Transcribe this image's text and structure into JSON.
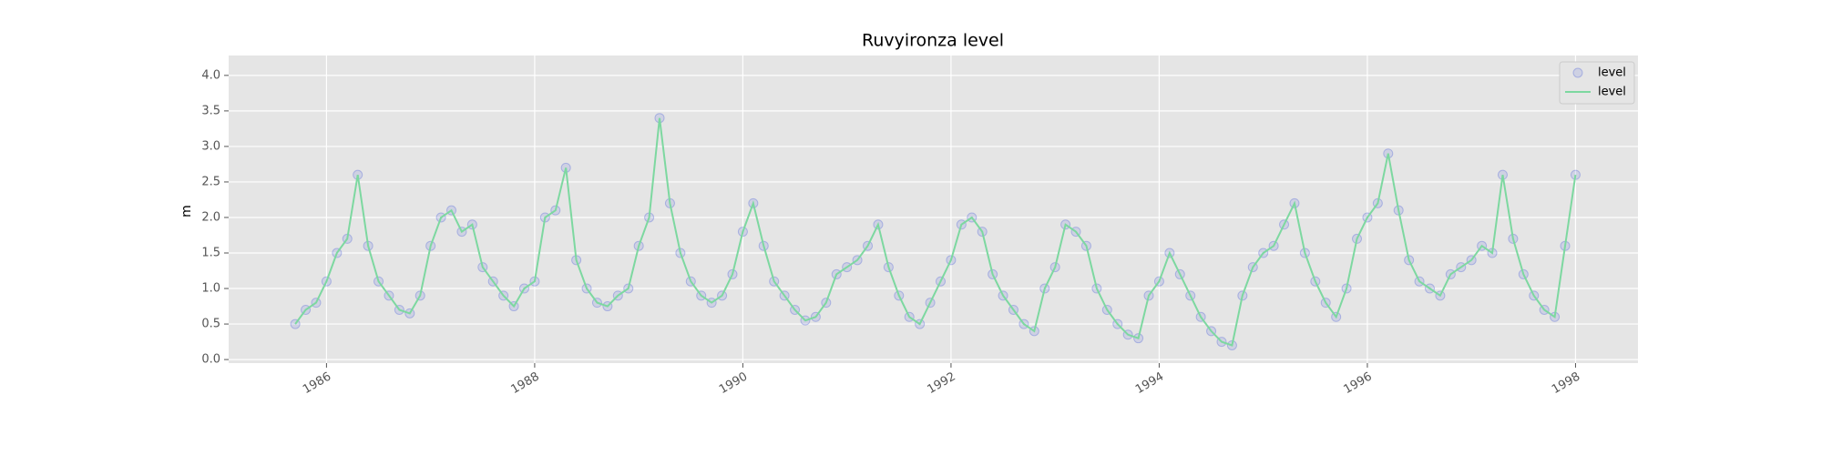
{
  "chart_data": {
    "type": "line",
    "title": "Ruvyironza level",
    "y_label": "m",
    "x": [
      1985.7,
      1985.8,
      1985.9,
      1986.0,
      1986.1,
      1986.2,
      1986.3,
      1986.4,
      1986.5,
      1986.6,
      1986.7,
      1986.8,
      1986.9,
      1987.0,
      1987.1,
      1987.2,
      1987.3,
      1987.4,
      1987.5,
      1987.6,
      1987.7,
      1987.8,
      1987.9,
      1988.0,
      1988.1,
      1988.2,
      1988.3,
      1988.4,
      1988.5,
      1988.6,
      1988.7,
      1988.8,
      1988.9,
      1989.0,
      1989.1,
      1989.2,
      1989.3,
      1989.4,
      1989.5,
      1989.6,
      1989.7,
      1989.8,
      1989.9,
      1990.0,
      1990.1,
      1990.2,
      1990.3,
      1990.4,
      1990.5,
      1990.6,
      1990.7,
      1990.8,
      1990.9,
      1991.0,
      1991.1,
      1991.2,
      1991.3,
      1991.4,
      1991.5,
      1991.6,
      1991.7,
      1991.8,
      1991.9,
      1992.0,
      1992.1,
      1992.2,
      1992.3,
      1992.4,
      1992.5,
      1992.6,
      1992.7,
      1992.8,
      1992.9,
      1993.0,
      1993.1,
      1993.2,
      1993.3,
      1993.4,
      1993.5,
      1993.6,
      1993.7,
      1993.8,
      1993.9,
      1994.0,
      1994.1,
      1994.2,
      1994.3,
      1994.4,
      1994.5,
      1994.6,
      1994.7,
      1994.8,
      1994.9,
      1995.0,
      1995.1,
      1995.2,
      1995.3,
      1995.4,
      1995.5,
      1995.6,
      1995.7,
      1995.8,
      1995.9,
      1996.0,
      1996.1,
      1996.2,
      1996.3,
      1996.4,
      1996.5,
      1996.6,
      1996.7,
      1996.8,
      1996.9,
      1997.0,
      1997.1,
      1997.2,
      1997.3,
      1997.4,
      1997.5,
      1997.6,
      1997.7,
      1997.8,
      1997.9,
      1998.0
    ],
    "series": [
      {
        "name": "level",
        "style": "markers",
        "color": "#4a5fd9",
        "values": [
          0.5,
          0.7,
          0.8,
          1.1,
          1.5,
          1.7,
          2.6,
          1.6,
          1.1,
          0.9,
          0.7,
          0.65,
          0.9,
          1.6,
          2.0,
          2.1,
          1.8,
          1.9,
          1.3,
          1.1,
          0.9,
          0.75,
          1.0,
          1.1,
          2.0,
          2.1,
          2.7,
          1.4,
          1.0,
          0.8,
          0.75,
          0.9,
          1.0,
          1.6,
          2.0,
          3.4,
          2.2,
          1.5,
          1.1,
          0.9,
          0.8,
          0.9,
          1.2,
          1.8,
          2.2,
          1.6,
          1.1,
          0.9,
          0.7,
          0.55,
          0.6,
          0.8,
          1.2,
          1.3,
          1.4,
          1.6,
          1.9,
          1.3,
          0.9,
          0.6,
          0.5,
          0.8,
          1.1,
          1.4,
          1.9,
          2.0,
          1.8,
          1.2,
          0.9,
          0.7,
          0.5,
          0.4,
          1.0,
          1.3,
          1.9,
          1.8,
          1.6,
          1.0,
          0.7,
          0.5,
          0.35,
          0.3,
          0.9,
          1.1,
          1.5,
          1.2,
          0.9,
          0.6,
          0.4,
          0.25,
          0.2,
          0.9,
          1.3,
          1.5,
          1.6,
          1.9,
          2.2,
          1.5,
          1.1,
          0.8,
          0.6,
          1.0,
          1.7,
          2.0,
          2.2,
          2.9,
          2.1,
          1.4,
          1.1,
          1.0,
          0.9,
          1.2,
          1.3,
          1.4,
          1.6,
          1.5,
          2.6,
          1.7,
          1.2,
          0.9,
          0.7,
          0.6,
          1.6,
          2.6
        ]
      },
      {
        "name": "level",
        "style": "line",
        "color": "#7dd8a0",
        "values": [
          0.5,
          0.7,
          0.8,
          1.1,
          1.5,
          1.7,
          2.6,
          1.6,
          1.1,
          0.9,
          0.7,
          0.65,
          0.9,
          1.6,
          2.0,
          2.1,
          1.8,
          1.9,
          1.3,
          1.1,
          0.9,
          0.75,
          1.0,
          1.1,
          2.0,
          2.1,
          2.7,
          1.4,
          1.0,
          0.8,
          0.75,
          0.9,
          1.0,
          1.6,
          2.0,
          3.4,
          2.2,
          1.5,
          1.1,
          0.9,
          0.8,
          0.9,
          1.2,
          1.8,
          2.2,
          1.6,
          1.1,
          0.9,
          0.7,
          0.55,
          0.6,
          0.8,
          1.2,
          1.3,
          1.4,
          1.6,
          1.9,
          1.3,
          0.9,
          0.6,
          0.5,
          0.8,
          1.1,
          1.4,
          1.9,
          2.0,
          1.8,
          1.2,
          0.9,
          0.7,
          0.5,
          0.4,
          1.0,
          1.3,
          1.9,
          1.8,
          1.6,
          1.0,
          0.7,
          0.5,
          0.35,
          0.3,
          0.9,
          1.1,
          1.5,
          1.2,
          0.9,
          0.6,
          0.4,
          0.25,
          0.2,
          0.9,
          1.3,
          1.5,
          1.6,
          1.9,
          2.2,
          1.5,
          1.1,
          0.8,
          0.6,
          1.0,
          1.7,
          2.0,
          2.2,
          2.9,
          2.1,
          1.4,
          1.1,
          1.0,
          0.9,
          1.2,
          1.3,
          1.4,
          1.6,
          1.5,
          2.6,
          1.7,
          1.2,
          0.9,
          0.7,
          0.6,
          1.6,
          2.6
        ]
      }
    ],
    "xlim": [
      1985.06,
      1998.6
    ],
    "xticks": [
      1986,
      1988,
      1990,
      1992,
      1994,
      1996,
      1998
    ],
    "ylim": [
      -0.05,
      4.28
    ],
    "yticks": [
      {
        "value": 0,
        "label": "0.0"
      },
      0.5,
      {
        "value": 1,
        "label": "1.0"
      },
      1.5,
      {
        "value": 2,
        "label": "2.0"
      },
      2.5,
      {
        "value": 3,
        "label": "3.0"
      },
      3.5,
      {
        "value": 4,
        "label": "4.0"
      }
    ],
    "grid": true,
    "legend": "upper right"
  }
}
